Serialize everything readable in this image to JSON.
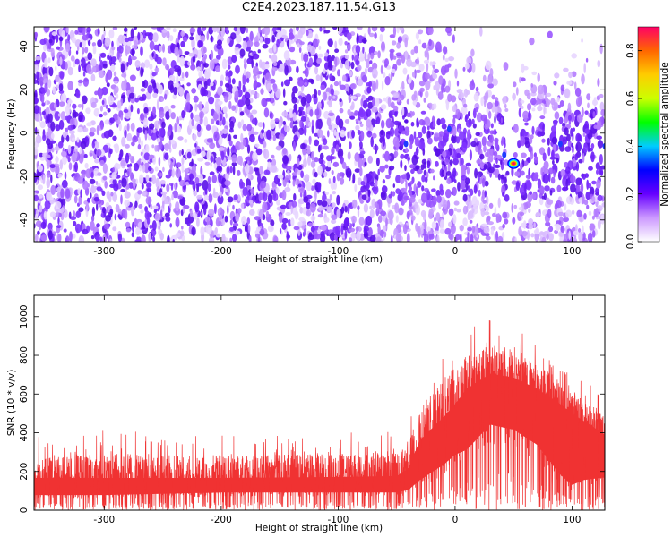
{
  "title": "C2E4.2023.187.11.54.G13",
  "colorbar": {
    "label": "Normalized spectral amplitude",
    "ticks": [
      0.0,
      0.2,
      0.4,
      0.6,
      0.8
    ],
    "tick_labels": [
      "0.0",
      "0.2",
      "0.4",
      "0.6",
      "0.8"
    ],
    "range": [
      0,
      0.9
    ],
    "colors": [
      "#ffffff",
      "#cc99ff",
      "#6600ff",
      "#0000ff",
      "#00ccff",
      "#00ff00",
      "#ccff00",
      "#ffcc00",
      "#ff6600",
      "#ff0066"
    ]
  },
  "chart_data": [
    {
      "type": "heatmap",
      "xlabel": "Height of straight line (km)",
      "ylabel": "Frequency (Hz)",
      "xlim": [
        -360,
        128
      ],
      "ylim": [
        -50,
        49
      ],
      "xticks": [
        -300,
        -200,
        -100,
        0,
        100
      ],
      "xtick_labels": [
        "-300",
        "-200",
        "-100",
        "0",
        "100"
      ],
      "yticks": [
        -40,
        -20,
        0,
        20,
        40
      ],
      "ytick_labels": [
        "-40",
        "-20",
        "0",
        "20",
        "40"
      ],
      "colorscale_label": "Normalized spectral amplitude",
      "peak": {
        "x": 50,
        "y": -14,
        "value": 0.9
      }
    },
    {
      "type": "area",
      "xlabel": "Height of straight line (km)",
      "ylabel": "SNR (10 * v/v)",
      "xlim": [
        -360,
        128
      ],
      "ylim": [
        0,
        1110
      ],
      "xticks": [
        -300,
        -200,
        -100,
        0,
        100
      ],
      "xtick_labels": [
        "-300",
        "-200",
        "-100",
        "0",
        "100"
      ],
      "yticks": [
        0,
        200,
        400,
        600,
        800,
        1000
      ],
      "ytick_labels": [
        "0",
        "200",
        "400",
        "600",
        "800",
        "1000"
      ],
      "color": "#f03232",
      "envelope": {
        "x": [
          -360,
          -300,
          -200,
          -100,
          -50,
          -40,
          -30,
          -10,
          0,
          10,
          30,
          50,
          70,
          90,
          100,
          110,
          128
        ],
        "low": [
          60,
          60,
          70,
          70,
          70,
          80,
          120,
          180,
          220,
          240,
          340,
          320,
          260,
          140,
          100,
          120,
          130
        ],
        "mid": [
          170,
          170,
          170,
          175,
          180,
          220,
          370,
          490,
          560,
          640,
          720,
          700,
          640,
          560,
          510,
          470,
          400
        ],
        "high": [
          360,
          380,
          360,
          370,
          380,
          450,
          650,
          800,
          880,
          900,
          960,
          920,
          830,
          760,
          700,
          650,
          560
        ]
      }
    }
  ]
}
